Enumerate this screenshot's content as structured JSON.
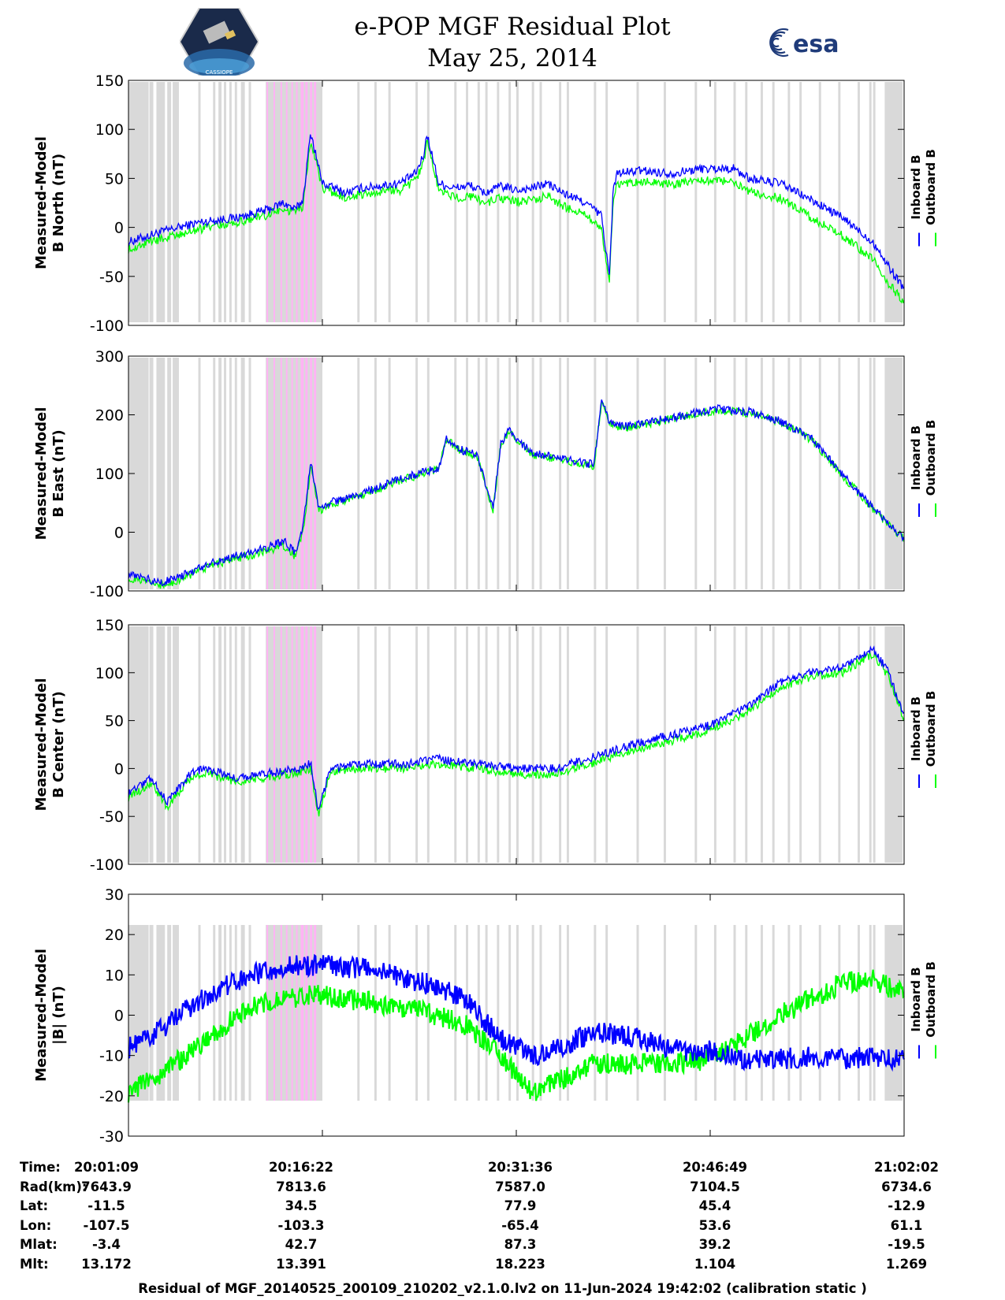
{
  "header": {
    "title": "e-POP MGF Residual Plot",
    "date": "May 25, 2014",
    "esa_logo_text": "esa",
    "cassiope_logo_text": "CASSIOPE"
  },
  "colors": {
    "inboard": "#0000ff",
    "outboard": "#00ff00",
    "shade_gray": "#d9d9d9",
    "shade_pink": "#ffb3f5"
  },
  "chart_data": [
    {
      "type": "line",
      "ylabel_line1": "Measured-Model",
      "ylabel_line2": "B North (nT)",
      "ylim": [
        -100,
        150
      ],
      "yticks": [
        150,
        100,
        50,
        0,
        -50,
        -100
      ],
      "ytick_labels": [
        "150",
        "100",
        "50",
        "0",
        "-50",
        "-100"
      ],
      "legend": [
        "Inboard B",
        "Outboard B"
      ],
      "series": [
        {
          "name": "Inboard B",
          "x": [
            0,
            0.04,
            0.09,
            0.14,
            0.18,
            0.2,
            0.215,
            0.225,
            0.235,
            0.25,
            0.28,
            0.3,
            0.32,
            0.35,
            0.37,
            0.38,
            0.385,
            0.4,
            0.42,
            0.44,
            0.46,
            0.48,
            0.5,
            0.52,
            0.54,
            0.56,
            0.59,
            0.61,
            0.615,
            0.62,
            0.625,
            0.63,
            0.66,
            0.7,
            0.74,
            0.78,
            0.8,
            0.84,
            0.88,
            0.92,
            0.96,
            0.98,
            1.0
          ],
          "y": [
            -15,
            -5,
            5,
            10,
            18,
            25,
            18,
            28,
            97,
            45,
            35,
            40,
            42,
            45,
            55,
            72,
            95,
            45,
            40,
            43,
            35,
            42,
            38,
            40,
            45,
            35,
            25,
            12,
            -20,
            -50,
            40,
            55,
            58,
            55,
            60,
            60,
            50,
            45,
            28,
            10,
            -15,
            -40,
            -62
          ]
        },
        {
          "name": "Outboard B",
          "x": [
            0,
            0.04,
            0.09,
            0.14,
            0.18,
            0.2,
            0.215,
            0.225,
            0.235,
            0.25,
            0.28,
            0.3,
            0.32,
            0.35,
            0.37,
            0.38,
            0.385,
            0.4,
            0.42,
            0.44,
            0.46,
            0.48,
            0.5,
            0.52,
            0.54,
            0.56,
            0.59,
            0.61,
            0.615,
            0.62,
            0.625,
            0.63,
            0.66,
            0.7,
            0.74,
            0.78,
            0.8,
            0.84,
            0.88,
            0.92,
            0.96,
            0.98,
            1.0
          ],
          "y": [
            -22,
            -12,
            -2,
            5,
            13,
            20,
            14,
            22,
            90,
            40,
            30,
            34,
            36,
            38,
            48,
            65,
            88,
            38,
            30,
            32,
            25,
            30,
            26,
            28,
            32,
            22,
            12,
            0,
            -30,
            -58,
            32,
            45,
            47,
            44,
            48,
            46,
            36,
            30,
            10,
            -8,
            -32,
            -58,
            -75
          ]
        }
      ]
    },
    {
      "type": "line",
      "ylabel_line1": "Measured-Model",
      "ylabel_line2": "B East (nT)",
      "ylim": [
        -100,
        300
      ],
      "yticks": [
        300,
        200,
        100,
        0,
        -100
      ],
      "ytick_labels": [
        "300",
        "200",
        "100",
        "0",
        "-100"
      ],
      "legend": [
        "Inboard B",
        "Outboard B"
      ],
      "series": [
        {
          "name": "Inboard B",
          "x": [
            0,
            0.04,
            0.06,
            0.1,
            0.14,
            0.18,
            0.2,
            0.215,
            0.225,
            0.235,
            0.245,
            0.26,
            0.3,
            0.35,
            0.4,
            0.41,
            0.43,
            0.45,
            0.47,
            0.48,
            0.49,
            0.5,
            0.52,
            0.56,
            0.6,
            0.61,
            0.62,
            0.64,
            0.68,
            0.72,
            0.76,
            0.8,
            0.84,
            0.88,
            0.92,
            0.96,
            1.0
          ],
          "y": [
            -72,
            -85,
            -80,
            -55,
            -40,
            -25,
            -15,
            -35,
            5,
            120,
            40,
            50,
            65,
            90,
            110,
            160,
            140,
            130,
            40,
            150,
            175,
            160,
            135,
            125,
            115,
            225,
            185,
            180,
            190,
            200,
            210,
            205,
            190,
            160,
            100,
            40,
            -10
          ]
        },
        {
          "name": "Outboard B",
          "x": [
            0,
            0.04,
            0.06,
            0.1,
            0.14,
            0.18,
            0.2,
            0.215,
            0.225,
            0.235,
            0.245,
            0.26,
            0.3,
            0.35,
            0.4,
            0.41,
            0.43,
            0.45,
            0.47,
            0.48,
            0.49,
            0.5,
            0.52,
            0.56,
            0.6,
            0.61,
            0.62,
            0.64,
            0.68,
            0.72,
            0.76,
            0.8,
            0.84,
            0.88,
            0.92,
            0.96,
            1.0
          ],
          "y": [
            -77,
            -90,
            -84,
            -60,
            -45,
            -32,
            -22,
            -42,
            -2,
            112,
            36,
            46,
            62,
            88,
            108,
            158,
            138,
            128,
            38,
            148,
            173,
            158,
            133,
            123,
            113,
            222,
            183,
            178,
            188,
            198,
            208,
            203,
            188,
            158,
            98,
            38,
            -12
          ]
        }
      ]
    },
    {
      "type": "line",
      "ylabel_line1": "Measured-Model",
      "ylabel_line2": "B Center (nT)",
      "ylim": [
        -100,
        150
      ],
      "yticks": [
        150,
        100,
        50,
        0,
        -50,
        -100
      ],
      "ytick_labels": [
        "150",
        "100",
        "50",
        "0",
        "-50",
        "-100"
      ],
      "legend": [
        "Inboard B",
        "Outboard B"
      ],
      "series": [
        {
          "name": "Inboard B",
          "x": [
            0,
            0.03,
            0.05,
            0.08,
            0.1,
            0.14,
            0.18,
            0.22,
            0.235,
            0.245,
            0.26,
            0.3,
            0.36,
            0.4,
            0.45,
            0.5,
            0.55,
            0.6,
            0.65,
            0.7,
            0.75,
            0.8,
            0.84,
            0.88,
            0.92,
            0.96,
            0.98,
            1.0
          ],
          "y": [
            -25,
            -10,
            -35,
            -5,
            0,
            -10,
            -5,
            0,
            5,
            -45,
            0,
            5,
            5,
            10,
            5,
            0,
            0,
            12,
            25,
            35,
            45,
            65,
            90,
            100,
            105,
            125,
            100,
            55
          ]
        },
        {
          "name": "Outboard B",
          "x": [
            0,
            0.03,
            0.05,
            0.08,
            0.1,
            0.14,
            0.18,
            0.22,
            0.235,
            0.245,
            0.26,
            0.3,
            0.36,
            0.4,
            0.45,
            0.5,
            0.55,
            0.6,
            0.65,
            0.7,
            0.75,
            0.8,
            0.84,
            0.88,
            0.92,
            0.96,
            0.98,
            1.0
          ],
          "y": [
            -30,
            -15,
            -40,
            -10,
            -5,
            -14,
            -9,
            -4,
            0,
            -50,
            -4,
            0,
            0,
            5,
            0,
            -6,
            -6,
            6,
            19,
            29,
            40,
            60,
            85,
            95,
            100,
            120,
            96,
            50
          ]
        }
      ]
    },
    {
      "type": "line",
      "ylabel_line1": "Measured-Model",
      "ylabel_line2": "|B| (nT)",
      "ylim": [
        -30,
        30
      ],
      "yticks": [
        30,
        20,
        10,
        0,
        -10,
        -20,
        -30
      ],
      "ytick_labels": [
        "30",
        "20",
        "10",
        "0",
        "-10",
        "-20",
        "-30"
      ],
      "legend": [
        "Inboard B",
        "Outboard B"
      ],
      "series": [
        {
          "name": "Inboard B",
          "x": [
            0,
            0.04,
            0.08,
            0.12,
            0.16,
            0.2,
            0.24,
            0.28,
            0.32,
            0.36,
            0.4,
            0.44,
            0.48,
            0.52,
            0.56,
            0.6,
            0.64,
            0.68,
            0.72,
            0.76,
            0.8,
            0.84,
            0.88,
            0.92,
            0.96,
            1.0
          ],
          "y": [
            -8,
            -4,
            2,
            7,
            10,
            12,
            12.5,
            12,
            11,
            9,
            7,
            3,
            -6,
            -10,
            -8,
            -4,
            -5,
            -7,
            -9,
            -9,
            -11,
            -11,
            -10,
            -11,
            -10,
            -11
          ]
        },
        {
          "name": "Outboard B",
          "x": [
            0,
            0.04,
            0.08,
            0.12,
            0.16,
            0.2,
            0.24,
            0.28,
            0.32,
            0.36,
            0.4,
            0.44,
            0.48,
            0.52,
            0.56,
            0.6,
            0.64,
            0.68,
            0.72,
            0.76,
            0.8,
            0.84,
            0.88,
            0.92,
            0.96,
            1.0
          ],
          "y": [
            -19,
            -15,
            -9,
            -3,
            2,
            4,
            5,
            4,
            3,
            1.5,
            0,
            -3,
            -10,
            -19,
            -16,
            -12,
            -12,
            -12,
            -12,
            -10,
            -5,
            0,
            4,
            8,
            9,
            5
          ]
        }
      ]
    }
  ],
  "shading": {
    "gray_bands": [
      [
        0.0,
        0.026
      ],
      [
        0.027,
        0.032
      ],
      [
        0.036,
        0.047
      ],
      [
        0.05,
        0.055
      ],
      [
        0.057,
        0.065
      ],
      [
        0.09,
        0.093
      ],
      [
        0.109,
        0.112
      ],
      [
        0.116,
        0.12
      ],
      [
        0.123,
        0.126
      ],
      [
        0.13,
        0.133
      ],
      [
        0.137,
        0.14
      ],
      [
        0.145,
        0.15
      ],
      [
        0.155,
        0.158
      ],
      [
        0.177,
        0.25
      ],
      [
        0.295,
        0.298
      ],
      [
        0.317,
        0.32
      ],
      [
        0.335,
        0.338
      ],
      [
        0.37,
        0.373
      ],
      [
        0.385,
        0.388
      ],
      [
        0.42,
        0.423
      ],
      [
        0.435,
        0.438
      ],
      [
        0.45,
        0.453
      ],
      [
        0.46,
        0.463
      ],
      [
        0.475,
        0.478
      ],
      [
        0.49,
        0.493
      ],
      [
        0.5,
        0.503
      ],
      [
        0.52,
        0.523
      ],
      [
        0.53,
        0.533
      ],
      [
        0.555,
        0.558
      ],
      [
        0.565,
        0.568
      ],
      [
        0.6,
        0.603
      ],
      [
        0.615,
        0.618
      ],
      [
        0.655,
        0.658
      ],
      [
        0.69,
        0.693
      ],
      [
        0.73,
        0.733
      ],
      [
        0.755,
        0.758
      ],
      [
        0.78,
        0.783
      ],
      [
        0.795,
        0.798
      ],
      [
        0.815,
        0.818
      ],
      [
        0.83,
        0.833
      ],
      [
        0.85,
        0.853
      ],
      [
        0.865,
        0.868
      ],
      [
        0.89,
        0.893
      ],
      [
        0.915,
        0.918
      ],
      [
        0.94,
        0.943
      ],
      [
        0.955,
        0.958
      ],
      [
        0.96,
        0.963
      ],
      [
        0.975,
        0.998
      ]
    ],
    "pink_bands": [
      [
        0.178,
        0.18
      ],
      [
        0.187,
        0.189
      ],
      [
        0.196,
        0.198
      ],
      [
        0.203,
        0.205
      ],
      [
        0.21,
        0.212
      ],
      [
        0.216,
        0.218
      ],
      [
        0.222,
        0.226
      ],
      [
        0.228,
        0.231
      ],
      [
        0.234,
        0.237
      ],
      [
        0.239,
        0.242
      ]
    ]
  },
  "xaxis": {
    "rows": [
      {
        "label": "Time:",
        "values": [
          "20:01:09",
          "20:16:22",
          "20:31:36",
          "20:46:49",
          "21:02:02"
        ]
      },
      {
        "label": "Rad(km):",
        "values": [
          "7643.9",
          "7813.6",
          "7587.0",
          "7104.5",
          "6734.6"
        ]
      },
      {
        "label": "Lat:",
        "values": [
          "-11.5",
          "34.5",
          "77.9",
          "45.4",
          "-12.9"
        ]
      },
      {
        "label": "Lon:",
        "values": [
          "-107.5",
          "-103.3",
          "-65.4",
          "53.6",
          "61.1"
        ]
      },
      {
        "label": "Mlat:",
        "values": [
          "-3.4",
          "42.7",
          "87.3",
          "39.2",
          "-19.5"
        ]
      },
      {
        "label": "Mlt:",
        "values": [
          "13.172",
          "13.391",
          "18.223",
          "1.104",
          "1.269"
        ]
      }
    ]
  },
  "footer": "Residual of MGF_20140525_200109_210202_v2.1.0.lv2 on 11-Jun-2024 19:42:02 (calibration static )"
}
